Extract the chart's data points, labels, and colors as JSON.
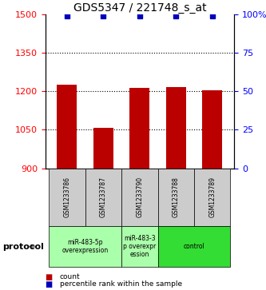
{
  "title": "GDS5347 / 221748_s_at",
  "samples": [
    "GSM1233786",
    "GSM1233787",
    "GSM1233790",
    "GSM1233788",
    "GSM1233789"
  ],
  "bar_values": [
    1225,
    1058,
    1215,
    1217,
    1205
  ],
  "percentile_values": [
    99,
    99,
    99,
    99,
    99
  ],
  "bar_color": "#bb0000",
  "dot_color": "#0000bb",
  "ylim_left": [
    900,
    1500
  ],
  "ylim_right": [
    0,
    100
  ],
  "yticks_left": [
    900,
    1050,
    1200,
    1350,
    1500
  ],
  "yticks_right": [
    0,
    25,
    50,
    75,
    100
  ],
  "ytick_labels_right": [
    "0",
    "25",
    "50",
    "75",
    "100%"
  ],
  "grid_values": [
    1050,
    1200,
    1350
  ],
  "groups": [
    {
      "label": "miR-483-5p\noverexpression",
      "sample_indices": [
        0,
        1
      ],
      "color": "#aaffaa"
    },
    {
      "label": "miR-483-3\np overexpr\nession",
      "sample_indices": [
        2
      ],
      "color": "#aaffaa"
    },
    {
      "label": "control",
      "sample_indices": [
        3,
        4
      ],
      "color": "#33dd33"
    }
  ],
  "protocol_label": "protocol",
  "legend_count_label": "count",
  "legend_percentile_label": "percentile rank within the sample",
  "background_color": "#ffffff",
  "sample_box_color": "#cccccc",
  "title_fontsize": 10,
  "axis_fontsize": 8,
  "bar_width": 0.55,
  "dot_percentile_mapped": 1488
}
